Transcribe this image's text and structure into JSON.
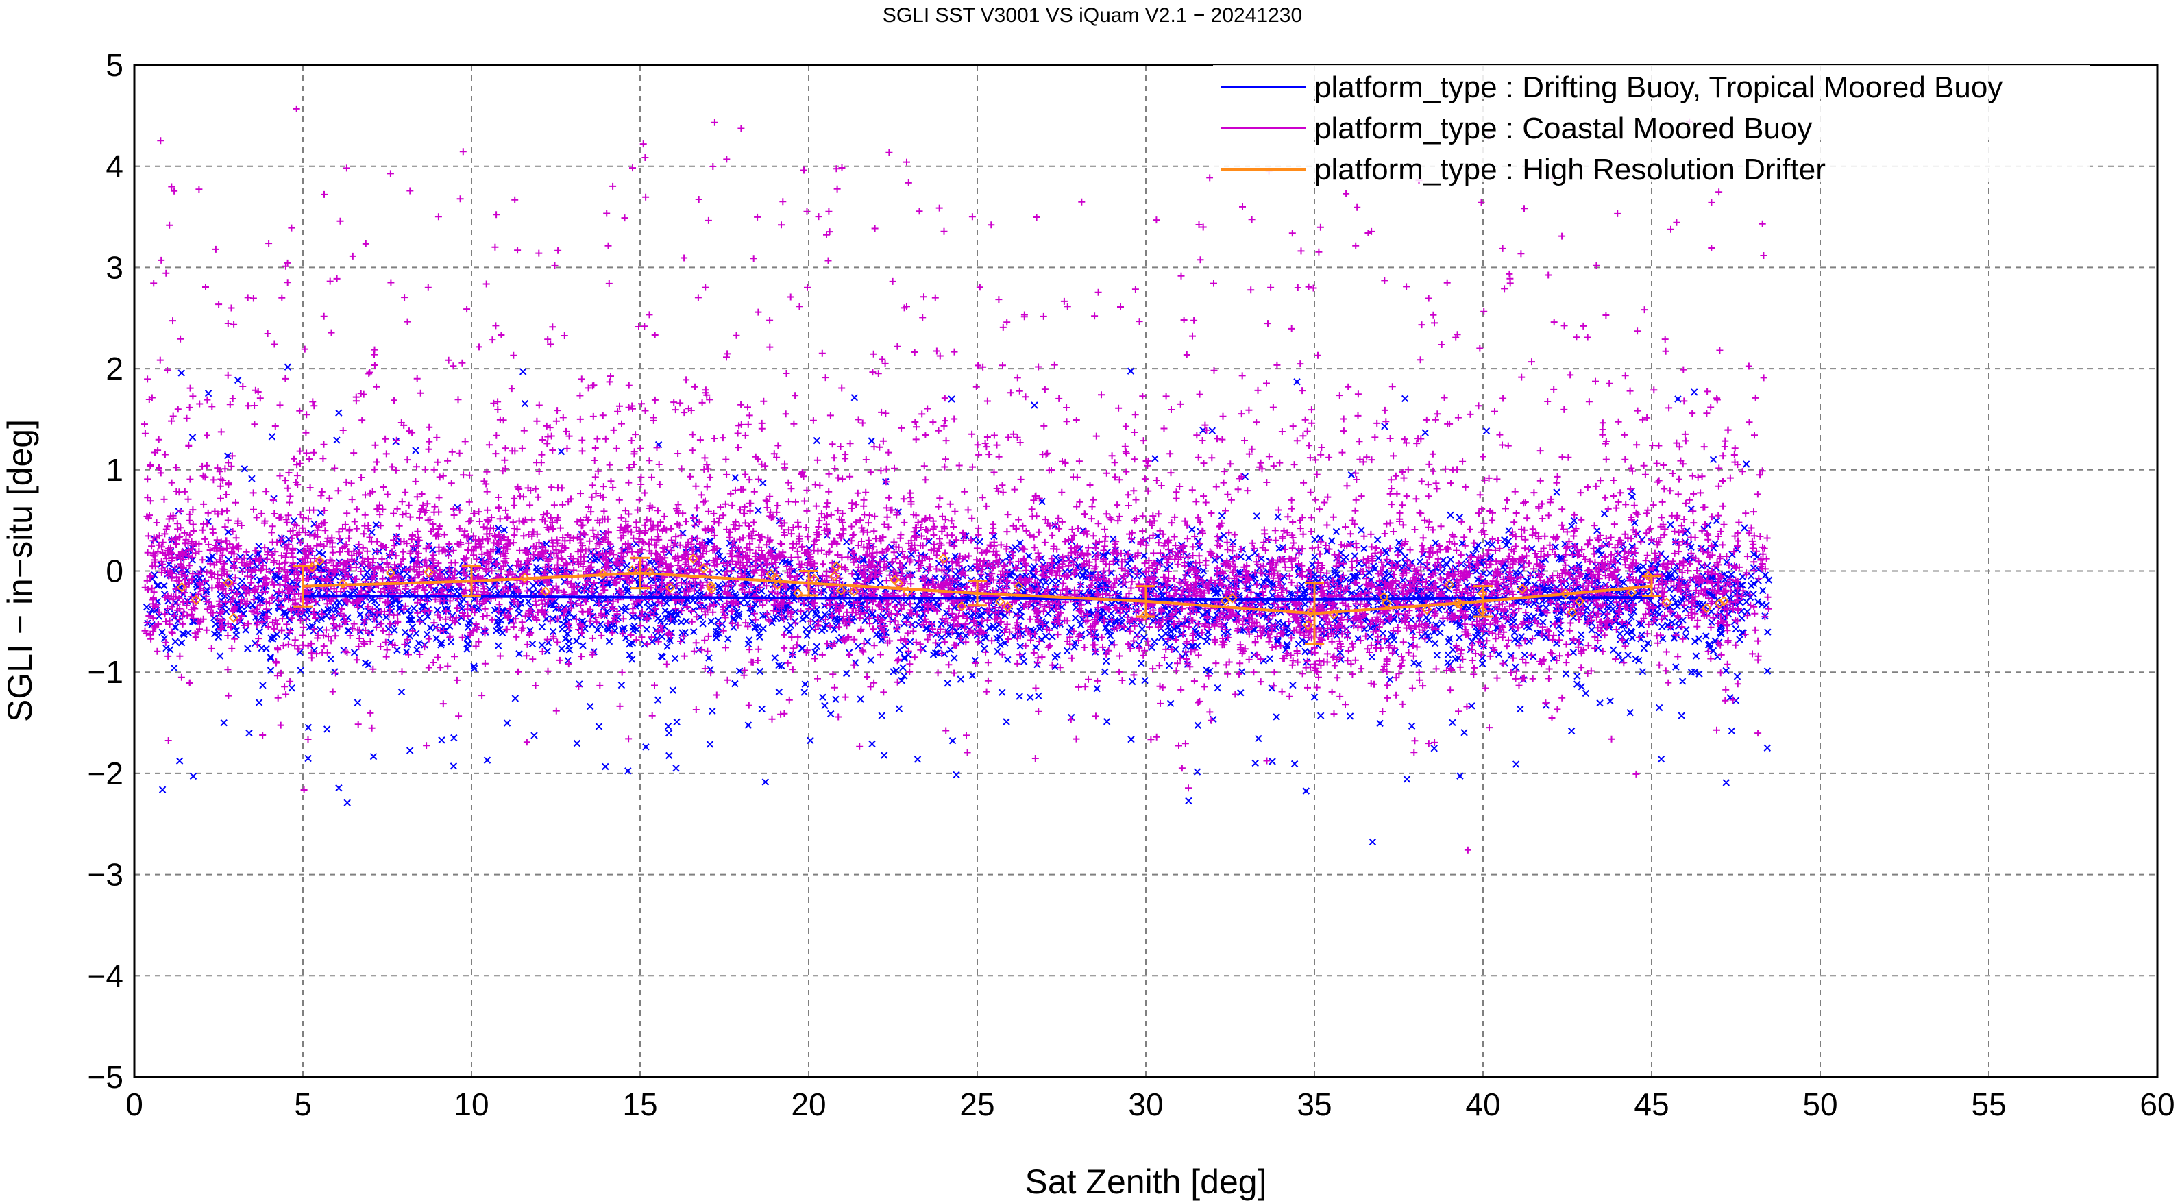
{
  "chart_data": {
    "type": "scatter",
    "title": "SGLI SST V3001 VS iQuam V2.1  − 20241230",
    "xlabel": "Sat Zenith [deg]",
    "ylabel": "SGLI − in−situ [deg]",
    "xlim": [
      0,
      60
    ],
    "ylim": [
      -5,
      5
    ],
    "x_ticks": [
      "0",
      "5",
      "10",
      "15",
      "20",
      "25",
      "30",
      "35",
      "40",
      "45",
      "50",
      "55",
      "60"
    ],
    "y_ticks": [
      "5",
      "4",
      "3",
      "2",
      "1",
      "0",
      "−1",
      "−2",
      "−3",
      "−4",
      "−5"
    ],
    "grid": true,
    "legend_position": "top-right",
    "series": [
      {
        "name": "platform_type : Drifting Buoy, Tropical Moored Buoy",
        "color": "#0000ff",
        "marker": "x",
        "x_range": [
          0.3,
          48.5
        ],
        "typical_y_range": [
          -1.2,
          0.8
        ],
        "mean_line": {
          "x": [
            5,
            10,
            15,
            20,
            25,
            30,
            35,
            40,
            45
          ],
          "y": [
            -0.25,
            -0.25,
            -0.26,
            -0.27,
            -0.27,
            -0.28,
            -0.28,
            -0.27,
            -0.26
          ]
        }
      },
      {
        "name": "platform_type : Coastal Moored Buoy",
        "color": "#cc00cc",
        "marker": "+",
        "x_range": [
          0.3,
          48.5
        ],
        "typical_y_range": [
          -1.0,
          1.5
        ],
        "mean_line": {
          "x": [
            5,
            10,
            15,
            20,
            25,
            30,
            35,
            40,
            45
          ],
          "y": [
            -0.15,
            -0.1,
            -0.02,
            -0.12,
            -0.22,
            -0.3,
            -0.42,
            -0.3,
            -0.15
          ]
        }
      },
      {
        "name": "platform_type : High Resolution Drifter",
        "color": "#ff8c1a",
        "marker": "diamond",
        "line": {
          "x": [
            5,
            10,
            15,
            20,
            25,
            30,
            35,
            40,
            45
          ],
          "y": [
            -0.15,
            -0.1,
            -0.02,
            -0.12,
            -0.22,
            -0.3,
            -0.42,
            -0.3,
            -0.15
          ],
          "err": [
            0.2,
            0.15,
            0.15,
            0.12,
            0.12,
            0.15,
            0.3,
            0.15,
            0.1
          ]
        }
      }
    ]
  }
}
